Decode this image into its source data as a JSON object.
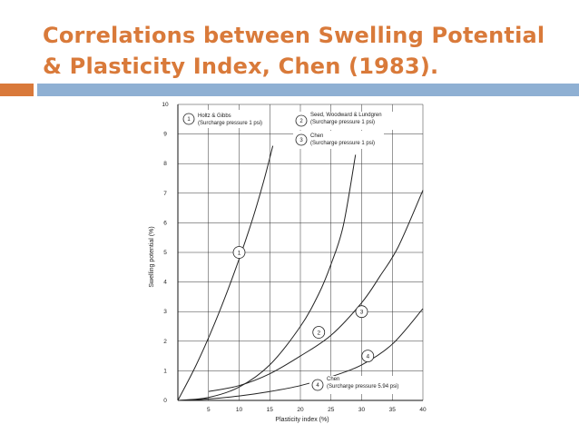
{
  "slide": {
    "title": "Correlations between Swelling Potential & Plasticity Index, Chen (1983).",
    "title_color": "#d97a3a",
    "accent_color": "#d9793a",
    "band_color": "#8fb0d3"
  },
  "chart_data": {
    "type": "line",
    "title": "",
    "xlabel": "Plasticity index (%)",
    "ylabel": "Swelling potential (%)",
    "xlim": [
      0,
      40
    ],
    "ylim": [
      0,
      10
    ],
    "x_ticks": [
      5,
      10,
      15,
      20,
      25,
      30,
      35,
      40
    ],
    "y_ticks": [
      0,
      1,
      2,
      3,
      4,
      5,
      6,
      7,
      8,
      9,
      10
    ],
    "grid": true,
    "series": [
      {
        "id": "1",
        "x": [
          0,
          3,
          6,
          9,
          12,
          14,
          15.5
        ],
        "y": [
          0,
          1.2,
          2.6,
          4.2,
          6.0,
          7.4,
          8.6
        ],
        "label_at": [
          10,
          5
        ]
      },
      {
        "id": "2",
        "x": [
          0,
          5,
          10,
          15,
          20,
          23,
          25,
          27,
          29
        ],
        "y": [
          0,
          0.1,
          0.45,
          1.2,
          2.5,
          3.6,
          4.6,
          5.9,
          8.3
        ],
        "label_at": [
          23,
          2.3
        ]
      },
      {
        "id": "3",
        "x": [
          5,
          10,
          15,
          20,
          25,
          30,
          33,
          36,
          40
        ],
        "y": [
          0.3,
          0.5,
          0.9,
          1.5,
          2.2,
          3.3,
          4.2,
          5.2,
          7.1
        ],
        "label_at": [
          30,
          3.0
        ]
      },
      {
        "id": "4",
        "x": [
          0,
          5,
          10,
          15,
          20,
          25,
          30,
          35,
          40
        ],
        "y": [
          0,
          0.05,
          0.15,
          0.3,
          0.5,
          0.8,
          1.2,
          1.9,
          3.1
        ],
        "label_at": [
          31,
          1.5
        ]
      }
    ],
    "legend": [
      {
        "num": "1",
        "line1": "Holtz & Gibbs",
        "line2": "(Surcharge pressure 1 psi)"
      },
      {
        "num": "2",
        "line1": "Seed, Woodward & Lundgren",
        "line2": "(Surcharge pressure 1 psi)"
      },
      {
        "num": "3",
        "line1": "Chen",
        "line2": "(Surcharge pressure 1 psi)"
      },
      {
        "num": "4",
        "line1": "Chen",
        "line2": "(Surcharge pressure 5.94 psi)"
      }
    ]
  }
}
